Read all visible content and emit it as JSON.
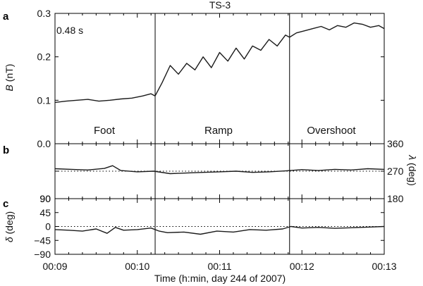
{
  "chart_data": {
    "type": "line",
    "title": "TS-3",
    "xlabel": "Time (h:min, day 244 of 2007)",
    "x_tick_labels": [
      "00:09",
      "00:10",
      "00:11",
      "00:12",
      "00:13"
    ],
    "x_range_minutes": [
      540,
      780
    ],
    "boundaries_minutes": [
      613,
      711
    ],
    "panels": [
      {
        "letter": "a",
        "ylabel_italic": "B",
        "ylabel_unit": " (nT)",
        "ylim": [
          0.0,
          0.3
        ],
        "y_ticks": [
          "0.0",
          "0.1",
          "0.2",
          "0.3"
        ],
        "annotation": "0.48 s",
        "regions": [
          "Foot",
          "Ramp",
          "Overshoot"
        ],
        "series": [
          {
            "x": [
              540,
              548,
              556,
              564,
              572,
              580,
              588,
              596,
              604,
              610,
              613,
              618,
              624,
              630,
              636,
              642,
              648,
              654,
              660,
              666,
              672,
              678,
              684,
              690,
              696,
              702,
              708,
              711,
              716,
              722,
              728,
              734,
              740,
              746,
              752,
              758,
              764,
              770,
              776,
              780
            ],
            "y": [
              0.095,
              0.098,
              0.1,
              0.102,
              0.098,
              0.1,
              0.103,
              0.105,
              0.11,
              0.115,
              0.11,
              0.14,
              0.18,
              0.16,
              0.185,
              0.17,
              0.2,
              0.175,
              0.21,
              0.19,
              0.22,
              0.195,
              0.225,
              0.215,
              0.24,
              0.225,
              0.25,
              0.245,
              0.255,
              0.26,
              0.265,
              0.27,
              0.262,
              0.272,
              0.268,
              0.278,
              0.275,
              0.268,
              0.272,
              0.265
            ]
          }
        ]
      },
      {
        "letter": "b",
        "ylabel_italic": "λ",
        "ylabel_unit": " (deg)",
        "ylim": [
          180,
          360
        ],
        "y_ticks_right": [
          "180",
          "270",
          "360"
        ],
        "reference": 270,
        "series": [
          {
            "x": [
              540,
              552,
              564,
              576,
              582,
              588,
              600,
              612,
              624,
              636,
              648,
              660,
              672,
              684,
              696,
              708,
              720,
              732,
              744,
              756,
              768,
              780
            ],
            "y": [
              278,
              276,
              274,
              279,
              288,
              272,
              268,
              270,
              262,
              264,
              266,
              268,
              270,
              266,
              268,
              271,
              275,
              272,
              276,
              274,
              278,
              276
            ]
          }
        ]
      },
      {
        "letter": "c",
        "ylabel_italic": "δ",
        "ylabel_unit": " (deg)",
        "ylim": [
          -90,
          90
        ],
        "y_ticks": [
          "−90",
          "−45",
          "0",
          "45",
          "90"
        ],
        "reference": 0,
        "series": [
          {
            "x": [
              540,
              550,
              560,
              570,
              578,
              584,
              590,
              600,
              610,
              616,
              622,
              634,
              646,
              658,
              670,
              682,
              694,
              706,
              712,
              720,
              732,
              744,
              756,
              768,
              780
            ],
            "y": [
              -10,
              -12,
              -15,
              -8,
              -22,
              -3,
              -12,
              -10,
              -5,
              -15,
              -20,
              -18,
              -25,
              -15,
              -18,
              -10,
              -12,
              -8,
              0,
              -5,
              -3,
              -6,
              -4,
              -2,
              0
            ]
          }
        ]
      }
    ]
  }
}
